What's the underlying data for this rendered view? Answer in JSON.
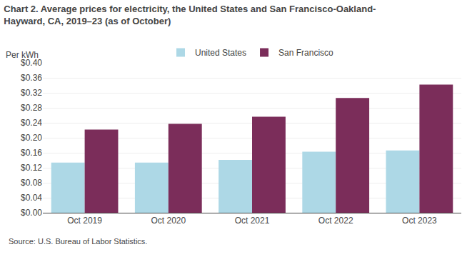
{
  "chart_data": {
    "type": "bar",
    "title": "Chart 2. Average prices for electricity, the United States and San Francisco-Oakland-",
    "subtitle": "Hayward, CA, 2019–23 (as of October)",
    "ylabel": "Per kWh",
    "annotations": [
      "Source: U.S. Bureau of Labor Statistics."
    ],
    "categories": [
      "Oct 2019",
      "Oct 2020",
      "Oct 2021",
      "Oct 2022",
      "Oct 2023"
    ],
    "series": [
      {
        "name": "United States",
        "color": "#add8e6",
        "values": [
          0.134,
          0.134,
          0.141,
          0.163,
          0.166
        ]
      },
      {
        "name": "San Francisco",
        "color": "#7b2d5a",
        "values": [
          0.222,
          0.237,
          0.256,
          0.306,
          0.342
        ]
      }
    ],
    "ylim": [
      0,
      0.4
    ],
    "yticks": [
      {
        "value": 0.0,
        "label": "$0.00"
      },
      {
        "value": 0.04,
        "label": "$0.04"
      },
      {
        "value": 0.08,
        "label": "$0.08"
      },
      {
        "value": 0.12,
        "label": "$0.12"
      },
      {
        "value": 0.16,
        "label": "$0.16"
      },
      {
        "value": 0.2,
        "label": "$0.20"
      },
      {
        "value": 0.24,
        "label": "$0.24"
      },
      {
        "value": 0.28,
        "label": "$0.28"
      },
      {
        "value": 0.32,
        "label": "$0.32"
      },
      {
        "value": 0.36,
        "label": "$0.36"
      },
      {
        "value": 0.4,
        "label": "$0.40"
      }
    ],
    "grid": true,
    "legend": "upper center"
  }
}
